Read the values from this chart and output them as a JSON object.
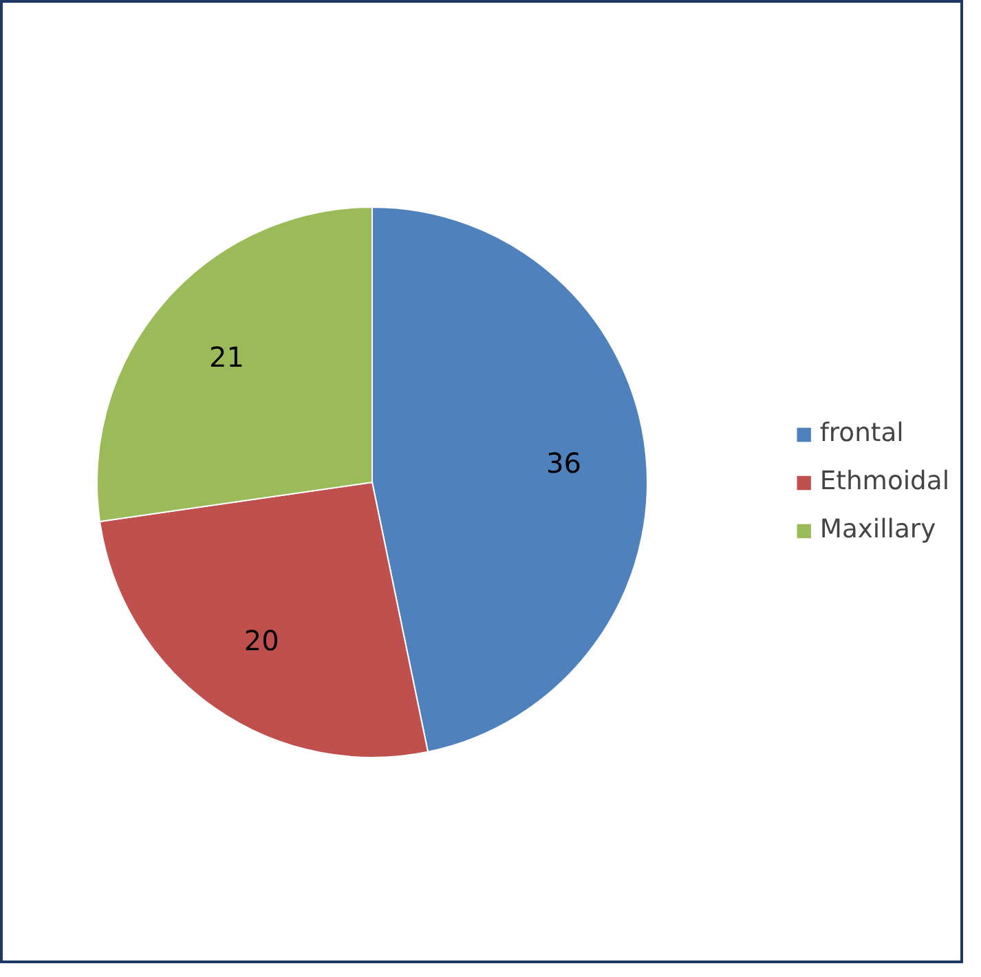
{
  "chart_data": {
    "type": "pie",
    "categories": [
      "frontal",
      "Ethmoidal",
      "Maxillary"
    ],
    "values": [
      36,
      20,
      21
    ],
    "colors": [
      "#4f81bd",
      "#c0504d",
      "#9bbb59"
    ],
    "data_labels": true,
    "legend": "right"
  }
}
